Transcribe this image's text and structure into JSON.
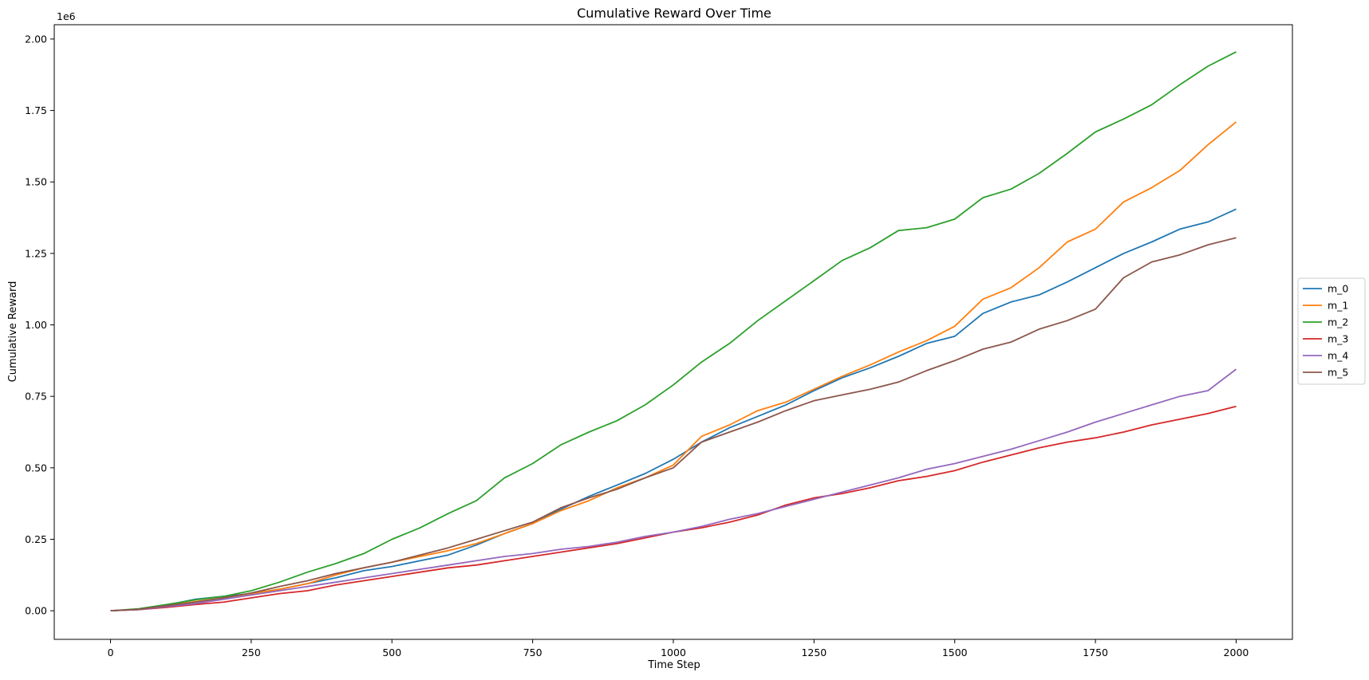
{
  "chart_data": {
    "type": "line",
    "title": "Cumulative Reward Over Time",
    "xlabel": "Time Step",
    "ylabel": "Cumulative Reward",
    "y_offset_label": "1e6",
    "xlim": [
      -100,
      2100
    ],
    "ylim": [
      -100000,
      2050000
    ],
    "x_ticks": [
      0,
      250,
      500,
      750,
      1000,
      1250,
      1500,
      1750,
      2000
    ],
    "x_tick_labels": [
      "0",
      "250",
      "500",
      "750",
      "1000",
      "1250",
      "1500",
      "1750",
      "2000"
    ],
    "y_ticks": [
      0,
      250000,
      500000,
      750000,
      1000000,
      1250000,
      1500000,
      1750000,
      2000000
    ],
    "y_tick_labels": [
      "0.00",
      "0.25",
      "0.50",
      "0.75",
      "1.00",
      "1.25",
      "1.50",
      "1.75",
      "2.00"
    ],
    "grid": false,
    "legend_position": "right-outside",
    "x": [
      0,
      50,
      100,
      150,
      200,
      250,
      300,
      350,
      400,
      450,
      500,
      550,
      600,
      650,
      700,
      750,
      800,
      850,
      900,
      950,
      1000,
      1050,
      1100,
      1150,
      1200,
      1250,
      1300,
      1350,
      1400,
      1450,
      1500,
      1550,
      1600,
      1650,
      1700,
      1750,
      1800,
      1850,
      1900,
      1950,
      2000
    ],
    "series": [
      {
        "name": "m_0",
        "color": "#1f77b4",
        "values": [
          0,
          5000,
          20000,
          40000,
          50000,
          60000,
          75000,
          95000,
          115000,
          140000,
          155000,
          175000,
          195000,
          230000,
          270000,
          305000,
          355000,
          400000,
          440000,
          480000,
          530000,
          590000,
          640000,
          680000,
          720000,
          770000,
          815000,
          850000,
          890000,
          935000,
          960000,
          1040000,
          1080000,
          1105000,
          1150000,
          1200000,
          1250000,
          1290000,
          1335000,
          1360000,
          1405000
        ]
      },
      {
        "name": "m_1",
        "color": "#ff7f0e",
        "values": [
          0,
          5000,
          18000,
          32000,
          45000,
          60000,
          75000,
          95000,
          125000,
          150000,
          170000,
          190000,
          210000,
          235000,
          270000,
          305000,
          350000,
          385000,
          430000,
          465000,
          510000,
          610000,
          650000,
          700000,
          730000,
          775000,
          820000,
          860000,
          905000,
          945000,
          995000,
          1090000,
          1130000,
          1200000,
          1290000,
          1335000,
          1430000,
          1480000,
          1540000,
          1630000,
          1710000
        ]
      },
      {
        "name": "m_2",
        "color": "#2ca02c",
        "values": [
          0,
          7000,
          22000,
          38000,
          50000,
          70000,
          100000,
          135000,
          165000,
          200000,
          250000,
          290000,
          340000,
          385000,
          465000,
          515000,
          580000,
          625000,
          665000,
          720000,
          790000,
          870000,
          935000,
          1015000,
          1085000,
          1155000,
          1225000,
          1270000,
          1330000,
          1340000,
          1370000,
          1445000,
          1475000,
          1530000,
          1600000,
          1675000,
          1720000,
          1770000,
          1840000,
          1905000,
          1955000
        ]
      },
      {
        "name": "m_3",
        "color": "#d62728",
        "values": [
          0,
          4000,
          12000,
          22000,
          30000,
          45000,
          60000,
          70000,
          90000,
          105000,
          120000,
          135000,
          150000,
          160000,
          175000,
          190000,
          205000,
          220000,
          235000,
          255000,
          275000,
          290000,
          310000,
          335000,
          370000,
          395000,
          410000,
          430000,
          455000,
          470000,
          490000,
          520000,
          545000,
          570000,
          590000,
          605000,
          625000,
          650000,
          670000,
          690000,
          715000
        ]
      },
      {
        "name": "m_4",
        "color": "#9467bd",
        "values": [
          0,
          4000,
          15000,
          25000,
          40000,
          55000,
          70000,
          85000,
          100000,
          115000,
          130000,
          145000,
          160000,
          175000,
          190000,
          200000,
          215000,
          225000,
          240000,
          260000,
          275000,
          295000,
          320000,
          340000,
          365000,
          390000,
          415000,
          440000,
          465000,
          495000,
          515000,
          540000,
          565000,
          595000,
          625000,
          660000,
          690000,
          720000,
          750000,
          770000,
          845000
        ]
      },
      {
        "name": "m_5",
        "color": "#8c564b",
        "values": [
          0,
          5000,
          18000,
          30000,
          45000,
          62000,
          85000,
          105000,
          130000,
          150000,
          170000,
          195000,
          220000,
          250000,
          280000,
          310000,
          360000,
          395000,
          425000,
          465000,
          500000,
          590000,
          625000,
          660000,
          700000,
          735000,
          755000,
          775000,
          800000,
          840000,
          875000,
          915000,
          940000,
          985000,
          1015000,
          1055000,
          1165000,
          1220000,
          1245000,
          1280000,
          1305000
        ]
      }
    ]
  }
}
